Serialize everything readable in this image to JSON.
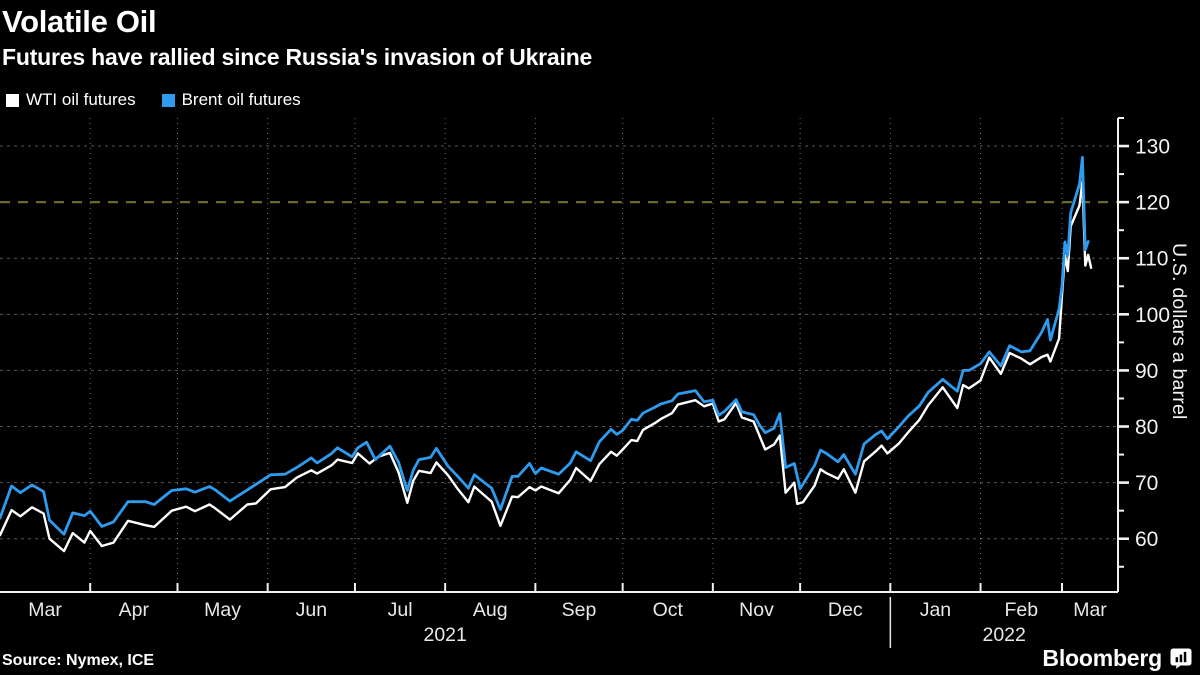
{
  "header": {
    "title": "Volatile Oil",
    "subtitle": "Futures have rallied since Russia's invasion of Ukraine"
  },
  "legend": [
    {
      "label": "WTI oil futures",
      "color": "#ffffff"
    },
    {
      "label": "Brent oil futures",
      "color": "#2e9bef"
    }
  ],
  "footer": {
    "source": "Source: Nymex, ICE",
    "brand": "Bloomberg"
  },
  "chart_data": {
    "type": "line",
    "title": "Volatile Oil",
    "subtitle": "Futures have rallied since Russia's invasion of Ukraine",
    "ylabel": "U.S. dollars a barrel",
    "xlabel": "",
    "ylim": [
      50.5,
      135
    ],
    "y_ticks": [
      60,
      70,
      80,
      90,
      100,
      110,
      120,
      130
    ],
    "y_minor_ticks": [
      55,
      65,
      75,
      85,
      95,
      105,
      115,
      125,
      135
    ],
    "x_range": [
      "2021-03-01",
      "2022-03-11"
    ],
    "month_labels": [
      "Mar",
      "Apr",
      "May",
      "Jun",
      "Jul",
      "Aug",
      "Sep",
      "Oct",
      "Nov",
      "Dec",
      "Jan",
      "Feb",
      "Mar"
    ],
    "year_labels": [
      "2021",
      "2022"
    ],
    "year_divider_date": "2022-01-01",
    "grid": true,
    "legend_position": "top-left",
    "reference_line": {
      "value": 120,
      "color": "#6c6a28",
      "style": "dashed"
    },
    "axis_color": "#f2f2f2",
    "grid_color": "#cfcfcf",
    "background_color": "#000000",
    "series": [
      {
        "name": "WTI oil futures",
        "color": "#ffffff",
        "points": [
          [
            "2021-03-01",
            60.6
          ],
          [
            "2021-03-05",
            65.1
          ],
          [
            "2021-03-08",
            64.0
          ],
          [
            "2021-03-12",
            65.6
          ],
          [
            "2021-03-16",
            64.5
          ],
          [
            "2021-03-18",
            60.0
          ],
          [
            "2021-03-23",
            57.8
          ],
          [
            "2021-03-26",
            61.0
          ],
          [
            "2021-03-30",
            59.3
          ],
          [
            "2021-04-01",
            61.4
          ],
          [
            "2021-04-05",
            58.7
          ],
          [
            "2021-04-09",
            59.3
          ],
          [
            "2021-04-14",
            63.2
          ],
          [
            "2021-04-20",
            62.4
          ],
          [
            "2021-04-23",
            62.1
          ],
          [
            "2021-04-29",
            65.0
          ],
          [
            "2021-05-04",
            65.7
          ],
          [
            "2021-05-07",
            64.9
          ],
          [
            "2021-05-12",
            66.1
          ],
          [
            "2021-05-14",
            65.4
          ],
          [
            "2021-05-19",
            63.4
          ],
          [
            "2021-05-25",
            66.1
          ],
          [
            "2021-05-28",
            66.3
          ],
          [
            "2021-06-02",
            68.8
          ],
          [
            "2021-06-07",
            69.2
          ],
          [
            "2021-06-11",
            70.9
          ],
          [
            "2021-06-16",
            72.2
          ],
          [
            "2021-06-18",
            71.6
          ],
          [
            "2021-06-23",
            73.1
          ],
          [
            "2021-06-25",
            74.1
          ],
          [
            "2021-06-30",
            73.5
          ],
          [
            "2021-07-02",
            75.2
          ],
          [
            "2021-07-06",
            73.4
          ],
          [
            "2021-07-09",
            74.6
          ],
          [
            "2021-07-13",
            75.3
          ],
          [
            "2021-07-16",
            71.8
          ],
          [
            "2021-07-19",
            66.4
          ],
          [
            "2021-07-21",
            70.3
          ],
          [
            "2021-07-23",
            72.1
          ],
          [
            "2021-07-27",
            71.7
          ],
          [
            "2021-07-29",
            73.6
          ],
          [
            "2021-08-02",
            71.3
          ],
          [
            "2021-08-05",
            69.1
          ],
          [
            "2021-08-09",
            66.5
          ],
          [
            "2021-08-11",
            69.3
          ],
          [
            "2021-08-13",
            68.4
          ],
          [
            "2021-08-17",
            66.6
          ],
          [
            "2021-08-20",
            62.3
          ],
          [
            "2021-08-24",
            67.5
          ],
          [
            "2021-08-26",
            67.4
          ],
          [
            "2021-08-30",
            69.2
          ],
          [
            "2021-09-01",
            68.6
          ],
          [
            "2021-09-03",
            69.3
          ],
          [
            "2021-09-09",
            68.1
          ],
          [
            "2021-09-13",
            70.5
          ],
          [
            "2021-09-15",
            72.6
          ],
          [
            "2021-09-20",
            70.3
          ],
          [
            "2021-09-23",
            73.3
          ],
          [
            "2021-09-27",
            75.5
          ],
          [
            "2021-09-29",
            74.8
          ],
          [
            "2021-10-01",
            75.9
          ],
          [
            "2021-10-04",
            77.6
          ],
          [
            "2021-10-06",
            77.4
          ],
          [
            "2021-10-08",
            79.4
          ],
          [
            "2021-10-12",
            80.6
          ],
          [
            "2021-10-14",
            81.3
          ],
          [
            "2021-10-18",
            82.4
          ],
          [
            "2021-10-20",
            83.9
          ],
          [
            "2021-10-26",
            84.7
          ],
          [
            "2021-10-29",
            83.6
          ],
          [
            "2021-11-01",
            84.1
          ],
          [
            "2021-11-03",
            80.9
          ],
          [
            "2021-11-05",
            81.3
          ],
          [
            "2021-11-09",
            84.2
          ],
          [
            "2021-11-11",
            81.6
          ],
          [
            "2021-11-15",
            80.9
          ],
          [
            "2021-11-17",
            78.4
          ],
          [
            "2021-11-19",
            75.9
          ],
          [
            "2021-11-22",
            76.8
          ],
          [
            "2021-11-24",
            78.4
          ],
          [
            "2021-11-26",
            68.2
          ],
          [
            "2021-11-29",
            70.0
          ],
          [
            "2021-11-30",
            66.2
          ],
          [
            "2021-12-02",
            66.5
          ],
          [
            "2021-12-06",
            69.5
          ],
          [
            "2021-12-08",
            72.4
          ],
          [
            "2021-12-10",
            71.7
          ],
          [
            "2021-12-14",
            70.7
          ],
          [
            "2021-12-16",
            72.4
          ],
          [
            "2021-12-20",
            68.2
          ],
          [
            "2021-12-23",
            73.8
          ],
          [
            "2021-12-27",
            75.6
          ],
          [
            "2021-12-29",
            76.6
          ],
          [
            "2021-12-31",
            75.2
          ],
          [
            "2022-01-04",
            77.0
          ],
          [
            "2022-01-07",
            78.9
          ],
          [
            "2022-01-11",
            81.2
          ],
          [
            "2022-01-14",
            83.8
          ],
          [
            "2022-01-19",
            87.0
          ],
          [
            "2022-01-24",
            83.3
          ],
          [
            "2022-01-26",
            87.4
          ],
          [
            "2022-01-28",
            86.8
          ],
          [
            "2022-02-01",
            88.2
          ],
          [
            "2022-02-04",
            92.3
          ],
          [
            "2022-02-08",
            89.4
          ],
          [
            "2022-02-11",
            93.1
          ],
          [
            "2022-02-15",
            92.1
          ],
          [
            "2022-02-18",
            91.1
          ],
          [
            "2022-02-22",
            92.4
          ],
          [
            "2022-02-24",
            92.8
          ],
          [
            "2022-02-25",
            91.6
          ],
          [
            "2022-02-28",
            95.7
          ],
          [
            "2022-03-01",
            103.4
          ],
          [
            "2022-03-02",
            110.6
          ],
          [
            "2022-03-03",
            107.7
          ],
          [
            "2022-03-04",
            115.7
          ],
          [
            "2022-03-07",
            119.4
          ],
          [
            "2022-03-08",
            123.7
          ],
          [
            "2022-03-09",
            108.7
          ],
          [
            "2022-03-10",
            110.6
          ],
          [
            "2022-03-11",
            108.3
          ]
        ]
      },
      {
        "name": "Brent oil futures",
        "color": "#2e9bef",
        "points": [
          [
            "2021-03-01",
            63.7
          ],
          [
            "2021-03-05",
            69.4
          ],
          [
            "2021-03-08",
            68.2
          ],
          [
            "2021-03-12",
            69.6
          ],
          [
            "2021-03-16",
            68.4
          ],
          [
            "2021-03-18",
            63.3
          ],
          [
            "2021-03-23",
            60.8
          ],
          [
            "2021-03-26",
            64.6
          ],
          [
            "2021-03-30",
            64.1
          ],
          [
            "2021-04-01",
            64.9
          ],
          [
            "2021-04-05",
            62.2
          ],
          [
            "2021-04-09",
            63.0
          ],
          [
            "2021-04-14",
            66.6
          ],
          [
            "2021-04-20",
            66.6
          ],
          [
            "2021-04-23",
            66.1
          ],
          [
            "2021-04-29",
            68.6
          ],
          [
            "2021-05-04",
            68.9
          ],
          [
            "2021-05-07",
            68.3
          ],
          [
            "2021-05-12",
            69.3
          ],
          [
            "2021-05-14",
            68.7
          ],
          [
            "2021-05-19",
            66.7
          ],
          [
            "2021-05-25",
            68.7
          ],
          [
            "2021-05-28",
            69.7
          ],
          [
            "2021-06-02",
            71.4
          ],
          [
            "2021-06-07",
            71.5
          ],
          [
            "2021-06-11",
            72.7
          ],
          [
            "2021-06-16",
            74.4
          ],
          [
            "2021-06-18",
            73.5
          ],
          [
            "2021-06-23",
            75.2
          ],
          [
            "2021-06-25",
            76.2
          ],
          [
            "2021-06-30",
            74.6
          ],
          [
            "2021-07-02",
            76.2
          ],
          [
            "2021-07-05",
            77.2
          ],
          [
            "2021-07-08",
            74.1
          ],
          [
            "2021-07-13",
            76.5
          ],
          [
            "2021-07-16",
            73.6
          ],
          [
            "2021-07-19",
            68.6
          ],
          [
            "2021-07-21",
            72.2
          ],
          [
            "2021-07-23",
            74.1
          ],
          [
            "2021-07-27",
            74.5
          ],
          [
            "2021-07-29",
            76.1
          ],
          [
            "2021-08-02",
            72.9
          ],
          [
            "2021-08-05",
            71.3
          ],
          [
            "2021-08-09",
            69.0
          ],
          [
            "2021-08-11",
            71.4
          ],
          [
            "2021-08-13",
            70.6
          ],
          [
            "2021-08-17",
            69.0
          ],
          [
            "2021-08-20",
            65.2
          ],
          [
            "2021-08-24",
            71.1
          ],
          [
            "2021-08-26",
            71.1
          ],
          [
            "2021-08-30",
            73.4
          ],
          [
            "2021-09-01",
            71.6
          ],
          [
            "2021-09-03",
            72.6
          ],
          [
            "2021-09-09",
            71.5
          ],
          [
            "2021-09-13",
            73.5
          ],
          [
            "2021-09-15",
            75.5
          ],
          [
            "2021-09-20",
            73.9
          ],
          [
            "2021-09-23",
            77.3
          ],
          [
            "2021-09-27",
            79.5
          ],
          [
            "2021-09-29",
            78.6
          ],
          [
            "2021-10-01",
            79.3
          ],
          [
            "2021-10-04",
            81.3
          ],
          [
            "2021-10-06",
            81.1
          ],
          [
            "2021-10-08",
            82.4
          ],
          [
            "2021-10-12",
            83.4
          ],
          [
            "2021-10-14",
            84.0
          ],
          [
            "2021-10-18",
            84.6
          ],
          [
            "2021-10-20",
            85.8
          ],
          [
            "2021-10-26",
            86.4
          ],
          [
            "2021-10-29",
            84.4
          ],
          [
            "2021-11-01",
            84.7
          ],
          [
            "2021-11-03",
            82.0
          ],
          [
            "2021-11-05",
            82.7
          ],
          [
            "2021-11-09",
            84.8
          ],
          [
            "2021-11-11",
            82.6
          ],
          [
            "2021-11-15",
            82.1
          ],
          [
            "2021-11-17",
            80.3
          ],
          [
            "2021-11-19",
            78.9
          ],
          [
            "2021-11-22",
            79.7
          ],
          [
            "2021-11-24",
            82.3
          ],
          [
            "2021-11-26",
            72.7
          ],
          [
            "2021-11-29",
            73.4
          ],
          [
            "2021-12-01",
            68.9
          ],
          [
            "2021-12-06",
            73.1
          ],
          [
            "2021-12-08",
            75.8
          ],
          [
            "2021-12-10",
            75.2
          ],
          [
            "2021-12-14",
            73.7
          ],
          [
            "2021-12-16",
            75.0
          ],
          [
            "2021-12-20",
            71.5
          ],
          [
            "2021-12-23",
            76.9
          ],
          [
            "2021-12-27",
            78.6
          ],
          [
            "2021-12-29",
            79.2
          ],
          [
            "2021-12-31",
            77.8
          ],
          [
            "2022-01-04",
            80.0
          ],
          [
            "2022-01-07",
            81.8
          ],
          [
            "2022-01-11",
            83.7
          ],
          [
            "2022-01-14",
            86.1
          ],
          [
            "2022-01-19",
            88.4
          ],
          [
            "2022-01-24",
            86.3
          ],
          [
            "2022-01-26",
            90.0
          ],
          [
            "2022-01-28",
            90.0
          ],
          [
            "2022-02-01",
            91.2
          ],
          [
            "2022-02-04",
            93.3
          ],
          [
            "2022-02-08",
            90.8
          ],
          [
            "2022-02-11",
            94.4
          ],
          [
            "2022-02-15",
            93.3
          ],
          [
            "2022-02-18",
            93.5
          ],
          [
            "2022-02-22",
            96.8
          ],
          [
            "2022-02-24",
            99.1
          ],
          [
            "2022-02-25",
            95.4
          ],
          [
            "2022-02-28",
            101.0
          ],
          [
            "2022-03-01",
            105.0
          ],
          [
            "2022-03-02",
            112.9
          ],
          [
            "2022-03-03",
            110.5
          ],
          [
            "2022-03-04",
            118.1
          ],
          [
            "2022-03-07",
            123.2
          ],
          [
            "2022-03-08",
            128.0
          ],
          [
            "2022-03-09",
            111.5
          ],
          [
            "2022-03-10",
            113.0
          ]
        ]
      }
    ]
  }
}
